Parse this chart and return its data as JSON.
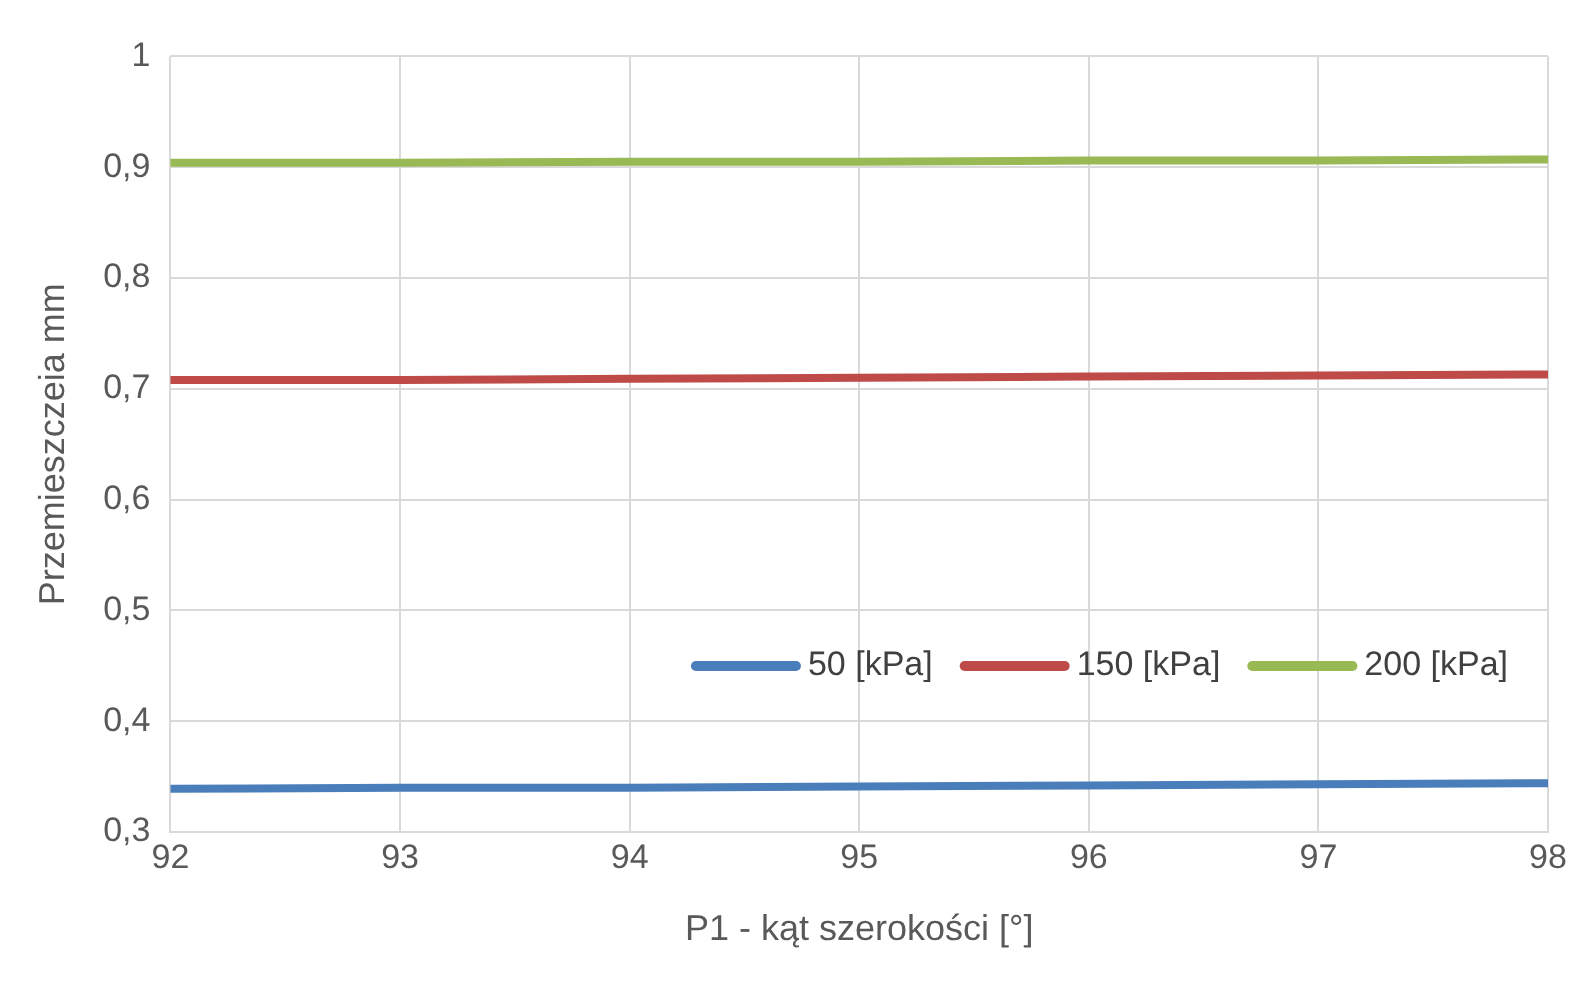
{
  "chart_data": {
    "type": "line",
    "xlabel": "P1 - kąt szerokości [°]",
    "ylabel": "Przemieszczeia mm",
    "x": [
      92,
      93,
      94,
      95,
      96,
      97,
      98
    ],
    "series": [
      {
        "name": "50 [kPa]",
        "color": "#4a7ebb",
        "values": [
          0.339,
          0.34,
          0.34,
          0.341,
          0.342,
          0.343,
          0.344
        ]
      },
      {
        "name": "150 [kPa]",
        "color": "#be4b48",
        "values": [
          0.708,
          0.708,
          0.709,
          0.71,
          0.711,
          0.712,
          0.713
        ]
      },
      {
        "name": "200 [kPa]",
        "color": "#98b954",
        "values": [
          0.904,
          0.904,
          0.905,
          0.905,
          0.906,
          0.906,
          0.907
        ]
      }
    ],
    "xlim": [
      92,
      98
    ],
    "xticks": [
      92,
      93,
      94,
      95,
      96,
      97,
      98
    ],
    "ylim": [
      0.3,
      1
    ],
    "yticks": [
      {
        "value": 0.3,
        "label": "0,3"
      },
      {
        "value": 0.4,
        "label": "0,4"
      },
      {
        "value": 0.5,
        "label": "0,5"
      },
      {
        "value": 0.6,
        "label": "0,6"
      },
      {
        "value": 0.7,
        "label": "0,7"
      },
      {
        "value": 0.8,
        "label": "0,8"
      },
      {
        "value": 0.9,
        "label": "0,9"
      },
      {
        "value": 1,
        "label": "1"
      }
    ],
    "grid": true,
    "legend": "right",
    "marker": "none",
    "line_style": "solid"
  }
}
